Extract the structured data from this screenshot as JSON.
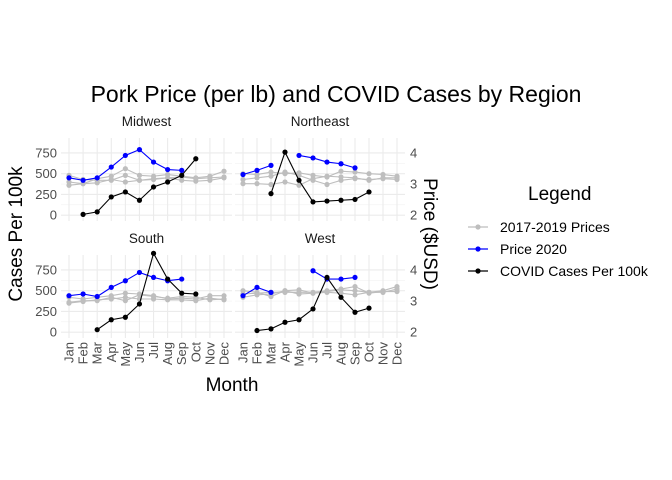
{
  "chart_data": {
    "type": "line",
    "title": "Pork Price (per lb) and COVID Cases by Region",
    "xlabel": "Month",
    "ylabel_left": "Cases Per 100k",
    "ylabel_right": "Price ($USD)",
    "months": [
      "Jan",
      "Feb",
      "Mar",
      "Apr",
      "May",
      "Jun",
      "Jul",
      "Aug",
      "Sep",
      "Oct",
      "Nov",
      "Dec"
    ],
    "left_ticks": [
      "0",
      "250",
      "500",
      "750"
    ],
    "right_ticks": [
      "2",
      "3",
      "4"
    ],
    "left_range": [
      -70,
      930
    ],
    "legend": {
      "title": "Legend",
      "position": "right",
      "items": [
        {
          "label": "2017-2019 Prices",
          "color": "#bebebe"
        },
        {
          "label": "Price 2020",
          "color": "#0000ff"
        },
        {
          "label": "COVID Cases Per 100k",
          "color": "#000000"
        }
      ]
    },
    "panels": [
      {
        "name": "Midwest",
        "prior_prices": [
          [
            400,
            380,
            440,
            470,
            560,
            480,
            470,
            490,
            470,
            450,
            470,
            530
          ],
          [
            480,
            430,
            420,
            420,
            480,
            420,
            430,
            450,
            460,
            440,
            450,
            460
          ],
          [
            360,
            380,
            390,
            430,
            400,
            420,
            440,
            450,
            420,
            410,
            420,
            450
          ]
        ],
        "price_2020": [
          450,
          420,
          450,
          580,
          720,
          790,
          640,
          550,
          540
        ],
        "covid": [
          null,
          10,
          40,
          220,
          280,
          180,
          340,
          400,
          480,
          680
        ]
      },
      {
        "name": "Northeast",
        "prior_prices": [
          [
            500,
            490,
            520,
            500,
            510,
            480,
            460,
            530,
            520,
            500,
            490,
            470
          ],
          [
            430,
            450,
            470,
            520,
            480,
            420,
            370,
            420,
            440,
            430,
            440,
            430
          ],
          [
            380,
            380,
            370,
            400,
            360,
            440,
            470,
            460,
            450,
            420,
            450,
            450
          ]
        ],
        "price_2020": [
          490,
          540,
          600,
          null,
          720,
          690,
          640,
          620,
          570
        ],
        "covid": [
          null,
          null,
          260,
          760,
          420,
          160,
          170,
          180,
          190,
          280
        ]
      },
      {
        "name": "South",
        "prior_prices": [
          [
            360,
            380,
            380,
            420,
            380,
            450,
            430,
            410,
            430,
            420,
            390,
            400
          ],
          [
            420,
            400,
            420,
            440,
            470,
            460,
            440,
            400,
            410,
            400,
            440,
            440
          ],
          [
            350,
            370,
            390,
            400,
            420,
            400,
            400,
            390,
            390,
            380,
            410,
            390
          ]
        ],
        "price_2020": [
          440,
          460,
          430,
          540,
          620,
          720,
          660,
          620,
          640
        ],
        "covid": [
          null,
          null,
          30,
          150,
          180,
          340,
          950,
          640,
          470,
          460
        ]
      },
      {
        "name": "West",
        "prior_prices": [
          [
            500,
            480,
            430,
            500,
            510,
            470,
            490,
            510,
            500,
            480,
            500,
            550
          ],
          [
            460,
            470,
            480,
            480,
            480,
            480,
            500,
            520,
            550,
            470,
            490,
            490
          ],
          [
            420,
            450,
            460,
            500,
            460,
            470,
            480,
            470,
            450,
            480,
            480,
            520
          ]
        ],
        "price_2020": [
          440,
          540,
          480,
          null,
          null,
          740,
          640,
          640,
          660
        ],
        "covid": [
          null,
          20,
          40,
          120,
          150,
          280,
          660,
          420,
          240,
          290
        ]
      }
    ]
  }
}
